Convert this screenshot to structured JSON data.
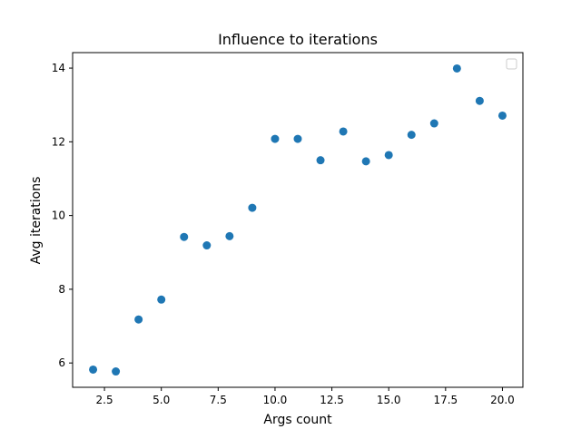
{
  "chart_data": {
    "type": "scatter",
    "title": "Influence to iterations",
    "xlabel": "Args count",
    "ylabel": "Avg iterations",
    "xlim": [
      1.1,
      20.9
    ],
    "ylim": [
      5.34,
      14.42
    ],
    "x_ticks": [
      2.5,
      5.0,
      7.5,
      10.0,
      12.5,
      15.0,
      17.5,
      20.0
    ],
    "x_tick_labels": [
      "2.5",
      "5.0",
      "7.5",
      "10.0",
      "12.5",
      "15.0",
      "17.5",
      "20.0"
    ],
    "y_ticks": [
      6,
      8,
      10,
      12,
      14
    ],
    "y_tick_labels": [
      "6",
      "8",
      "10",
      "12",
      "14"
    ],
    "grid": false,
    "legend": {
      "placement": "upper right",
      "entries": []
    },
    "colors": {
      "marker": "#1f77b4",
      "axes": "#000000",
      "background": "#ffffff"
    },
    "series": [
      {
        "x": [
          2,
          3,
          4,
          5,
          6,
          7,
          8,
          9,
          10,
          11,
          12,
          13,
          14,
          15,
          16,
          17,
          18,
          19,
          20
        ],
        "y": [
          5.82,
          5.77,
          7.18,
          7.72,
          9.42,
          9.19,
          9.44,
          10.21,
          12.08,
          12.08,
          11.5,
          12.28,
          11.47,
          11.64,
          12.19,
          12.5,
          13.99,
          13.11,
          12.71
        ]
      }
    ]
  }
}
